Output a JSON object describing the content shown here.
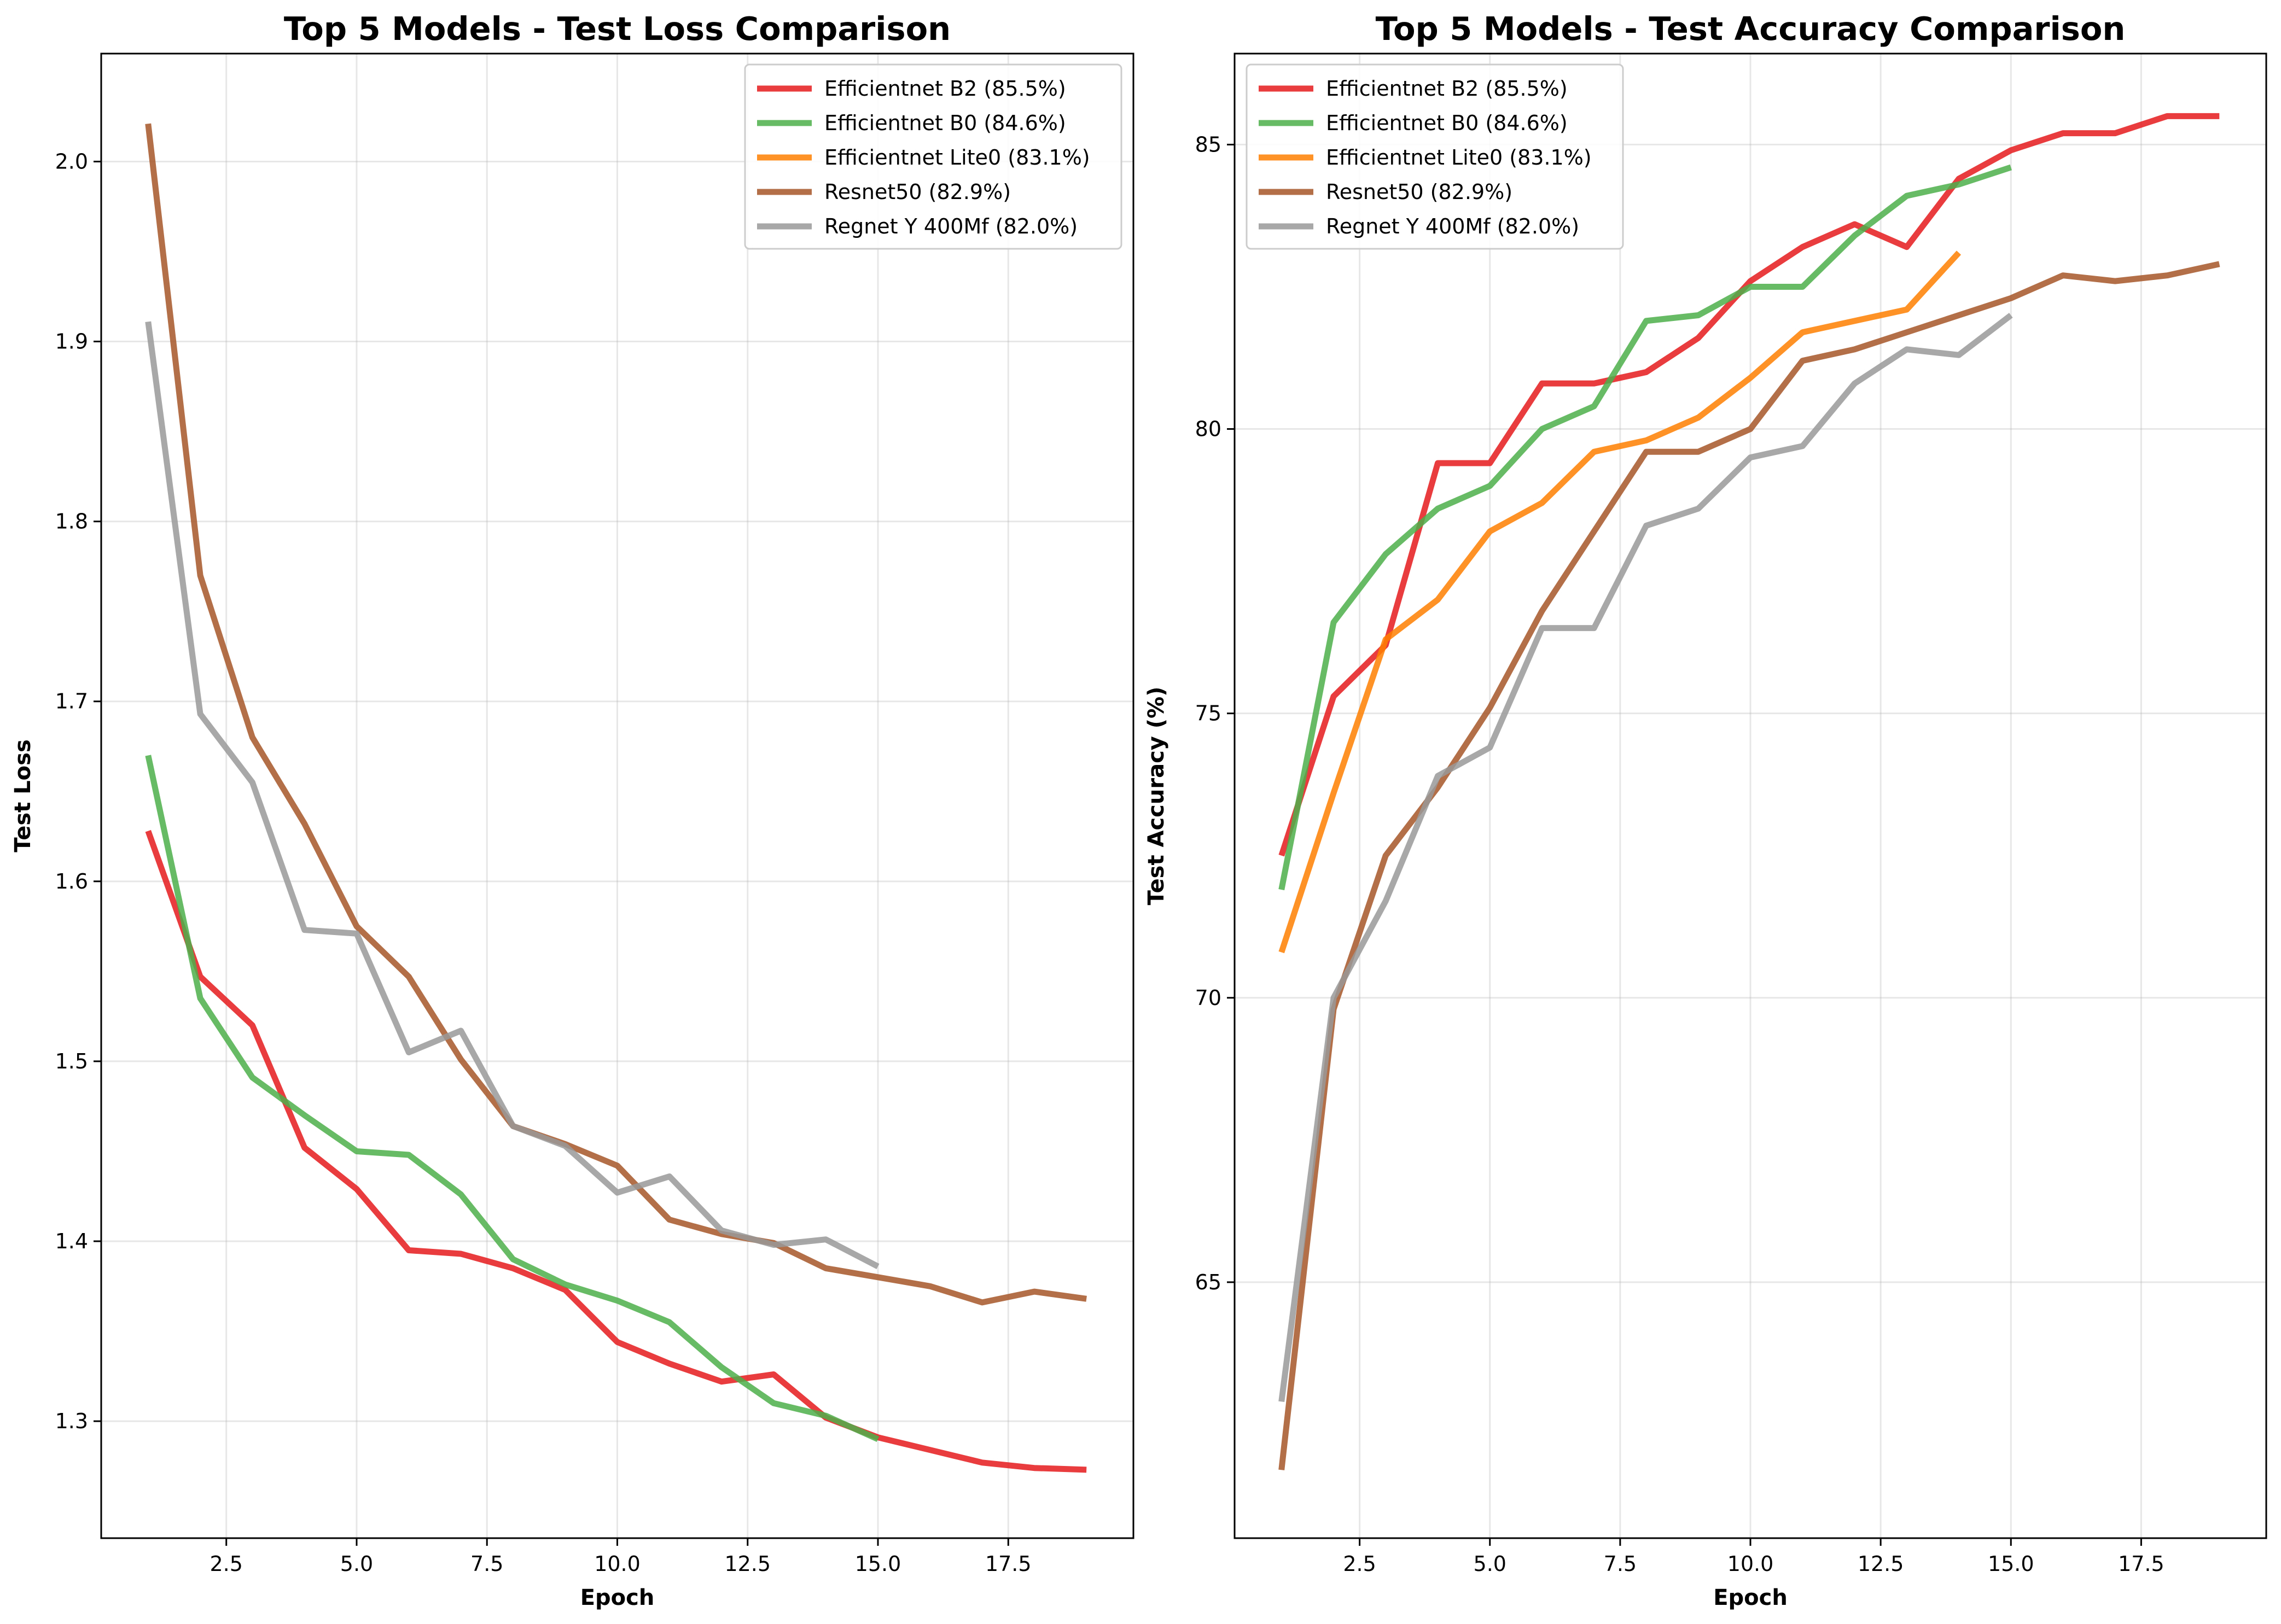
{
  "chart_data": [
    {
      "type": "line",
      "title": "Top 5 Models - Test Loss Comparison",
      "xlabel": "Epoch",
      "ylabel": "Test Loss",
      "xlim": [
        0.1,
        19.9
      ],
      "ylim": [
        1.235,
        2.06
      ],
      "xticks": [
        2.5,
        5.0,
        7.5,
        10.0,
        12.5,
        15.0,
        17.5
      ],
      "xtick_labels": [
        "2.5",
        "5.0",
        "7.5",
        "10.0",
        "12.5",
        "15.0",
        "17.5"
      ],
      "yticks": [
        1.3,
        1.4,
        1.5,
        1.6,
        1.7,
        1.8,
        1.9,
        2.0
      ],
      "ytick_labels": [
        "1.3",
        "1.4",
        "1.5",
        "1.6",
        "1.7",
        "1.8",
        "1.9",
        "2.0"
      ],
      "grid": true,
      "legend_position": "top-right",
      "series": [
        {
          "name": "Efficientnet B2 (85.5%)",
          "color": "#e41a1c",
          "x": [
            1,
            2,
            3,
            4,
            5,
            6,
            7,
            8,
            9,
            10,
            11,
            12,
            13,
            14,
            15,
            16,
            17,
            18,
            19
          ],
          "values": [
            1.628,
            1.547,
            1.52,
            1.452,
            1.429,
            1.395,
            1.393,
            1.385,
            1.373,
            1.344,
            1.332,
            1.322,
            1.326,
            1.302,
            1.291,
            1.284,
            1.277,
            1.274,
            1.273
          ]
        },
        {
          "name": "Efficientnet B0 (84.6%)",
          "color": "#4daf4a",
          "x": [
            1,
            2,
            3,
            4,
            5,
            6,
            7,
            8,
            9,
            10,
            11,
            12,
            13,
            14,
            15
          ],
          "values": [
            1.67,
            1.535,
            1.491,
            1.47,
            1.45,
            1.448,
            1.426,
            1.39,
            1.376,
            1.367,
            1.355,
            1.33,
            1.31,
            1.303,
            1.29
          ]
        },
        {
          "name": "Efficientnet Lite0 (83.1%)",
          "color": "#ff7f00",
          "x": [],
          "values": []
        },
        {
          "name": "Resnet50 (82.9%)",
          "color": "#a65628",
          "x": [
            1,
            2,
            3,
            4,
            5,
            6,
            7,
            8,
            9,
            10,
            11,
            12,
            13,
            14,
            15,
            16,
            17,
            18,
            19
          ],
          "values": [
            2.021,
            1.77,
            1.68,
            1.632,
            1.575,
            1.547,
            1.501,
            1.464,
            1.454,
            1.442,
            1.412,
            1.404,
            1.399,
            1.385,
            1.38,
            1.375,
            1.366,
            1.372,
            1.368
          ]
        },
        {
          "name": "Regnet Y 400Mf (82.0%)",
          "color": "#999999",
          "x": [
            1,
            2,
            3,
            4,
            5,
            6,
            7,
            8,
            9,
            10,
            11,
            12,
            13,
            14,
            15
          ],
          "values": [
            1.911,
            1.693,
            1.655,
            1.573,
            1.571,
            1.505,
            1.517,
            1.464,
            1.453,
            1.427,
            1.436,
            1.406,
            1.398,
            1.401,
            1.386
          ]
        }
      ]
    },
    {
      "type": "line",
      "title": "Top 5 Models - Test Accuracy Comparison",
      "xlabel": "Epoch",
      "ylabel": "Test Accuracy (%)",
      "xlim": [
        0.1,
        19.9
      ],
      "ylim": [
        60.5,
        86.6
      ],
      "xticks": [
        2.5,
        5.0,
        7.5,
        10.0,
        12.5,
        15.0,
        17.5
      ],
      "xtick_labels": [
        "2.5",
        "5.0",
        "7.5",
        "10.0",
        "12.5",
        "15.0",
        "17.5"
      ],
      "yticks": [
        65,
        70,
        75,
        80,
        85
      ],
      "ytick_labels": [
        "65",
        "70",
        "75",
        "80",
        "85"
      ],
      "grid": true,
      "legend_position": "top-left",
      "series": [
        {
          "name": "Efficientnet B2 (85.5%)",
          "color": "#e41a1c",
          "x": [
            1,
            2,
            3,
            4,
            5,
            6,
            7,
            8,
            9,
            10,
            11,
            12,
            13,
            14,
            15,
            16,
            17,
            18,
            19
          ],
          "values": [
            72.5,
            75.3,
            76.2,
            79.4,
            79.4,
            80.8,
            80.8,
            81.0,
            81.6,
            82.6,
            83.2,
            83.6,
            83.2,
            84.4,
            84.9,
            85.2,
            85.2,
            85.5,
            85.5
          ]
        },
        {
          "name": "Efficientnet B0 (84.6%)",
          "color": "#4daf4a",
          "x": [
            1,
            2,
            3,
            4,
            5,
            6,
            7,
            8,
            9,
            10,
            11,
            12,
            13,
            14,
            15
          ],
          "values": [
            71.9,
            76.6,
            77.8,
            78.6,
            79.0,
            80.0,
            80.4,
            81.9,
            82.0,
            82.5,
            82.5,
            83.4,
            84.1,
            84.3,
            84.6
          ]
        },
        {
          "name": "Efficientnet Lite0 (83.1%)",
          "color": "#ff7f00",
          "x": [
            1,
            2,
            3,
            4,
            5,
            6,
            7,
            8,
            9,
            10,
            11,
            12,
            13,
            14
          ],
          "values": [
            70.8,
            73.6,
            76.3,
            77.0,
            78.2,
            78.7,
            79.6,
            79.8,
            80.2,
            80.9,
            81.7,
            81.9,
            82.1,
            83.1
          ]
        },
        {
          "name": "Resnet50 (82.9%)",
          "color": "#a65628",
          "x": [
            1,
            2,
            3,
            4,
            5,
            6,
            7,
            8,
            9,
            10,
            11,
            12,
            13,
            14,
            15,
            16,
            17,
            18,
            19
          ],
          "values": [
            61.7,
            69.8,
            72.5,
            73.7,
            75.1,
            76.8,
            78.2,
            79.6,
            79.6,
            80.0,
            81.2,
            81.4,
            81.7,
            82.0,
            82.3,
            82.7,
            82.6,
            82.7,
            82.9
          ]
        },
        {
          "name": "Regnet Y 400Mf (82.0%)",
          "color": "#999999",
          "x": [
            1,
            2,
            3,
            4,
            5,
            6,
            7,
            8,
            9,
            10,
            11,
            12,
            13,
            14,
            15
          ],
          "values": [
            62.9,
            70.0,
            71.7,
            73.9,
            74.4,
            76.5,
            76.5,
            78.3,
            78.6,
            79.5,
            79.7,
            80.8,
            81.4,
            81.3,
            82.0
          ]
        }
      ]
    }
  ]
}
